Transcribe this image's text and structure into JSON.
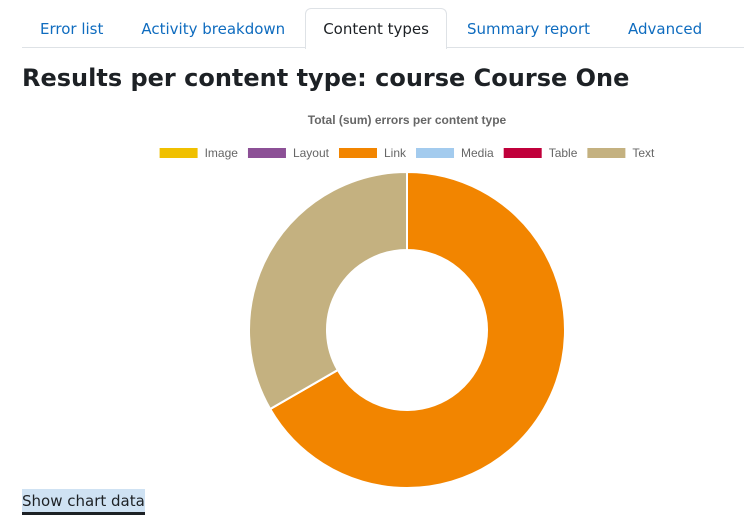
{
  "tabs": [
    "Error list",
    "Activity breakdown",
    "Content types",
    "Summary report",
    "Advanced"
  ],
  "active_tab": 2,
  "heading": "Results per content type: course Course One",
  "chart_data": {
    "type": "doughnut",
    "title": "Total (sum) errors per content type",
    "categories": [
      "Image",
      "Layout",
      "Link",
      "Media",
      "Table",
      "Text"
    ],
    "values": [
      0,
      0,
      2,
      0,
      0,
      1
    ],
    "colors": [
      "#f0c000",
      "#8c5096",
      "#f28500",
      "#a3cbee",
      "#c0003b",
      "#c4b180"
    ]
  },
  "show_data_link": "Show chart data"
}
